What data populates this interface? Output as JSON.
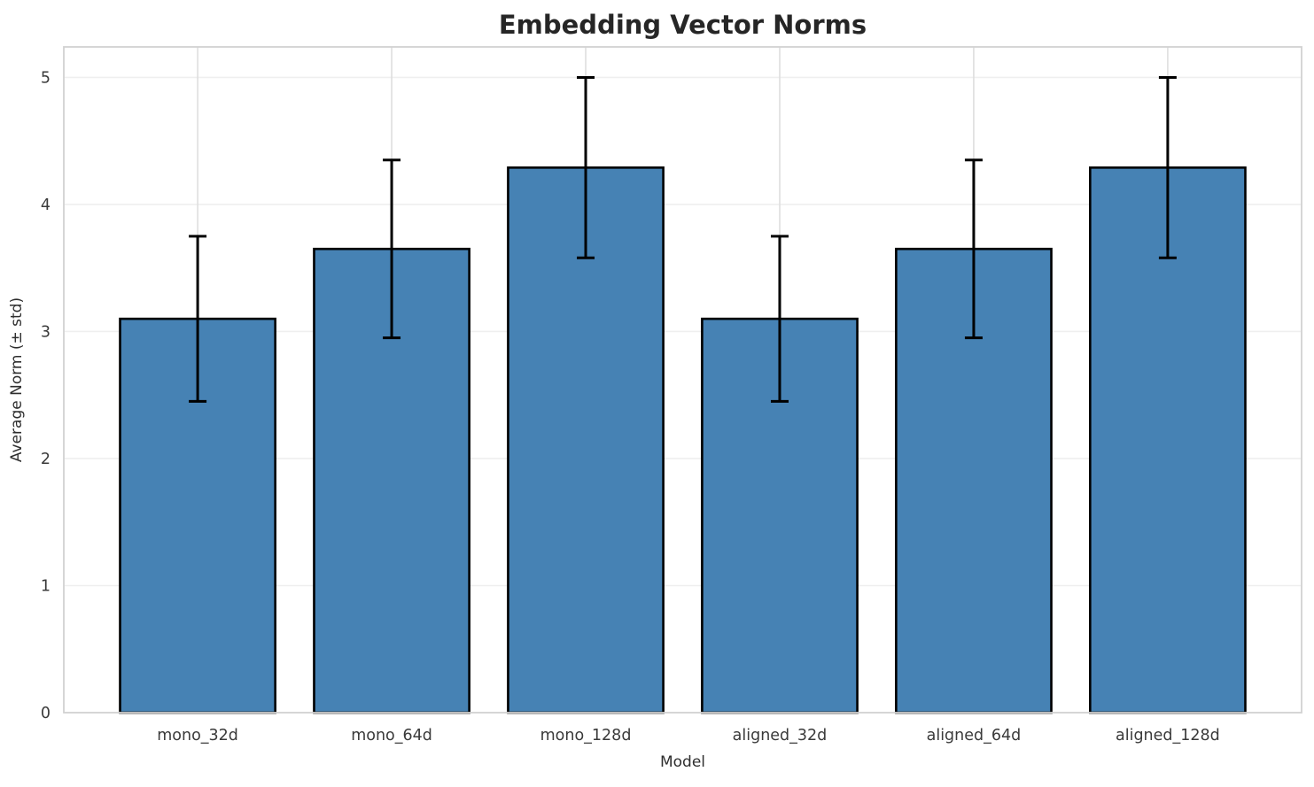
{
  "chart_data": {
    "type": "bar",
    "title": "Embedding Vector Norms",
    "xlabel": "Model",
    "ylabel": "Average Norm (± std)",
    "categories": [
      "mono_32d",
      "mono_64d",
      "mono_128d",
      "aligned_32d",
      "aligned_64d",
      "aligned_128d"
    ],
    "values": [
      3.1,
      3.65,
      4.29,
      3.1,
      3.65,
      4.29
    ],
    "errors": [
      0.65,
      0.7,
      0.71,
      0.65,
      0.7,
      0.71
    ],
    "series": [
      {
        "name": "Average Norm",
        "values": [
          3.1,
          3.65,
          4.29,
          3.1,
          3.65,
          4.29
        ],
        "errors": [
          0.65,
          0.7,
          0.71,
          0.65,
          0.7,
          0.71
        ]
      }
    ],
    "yticks": [
      "0",
      "1",
      "2",
      "3",
      "4",
      "5"
    ],
    "ylim": [
      0,
      5.24
    ],
    "bar_width_fraction": 0.8,
    "grid": true,
    "legend": "none",
    "colors": {
      "bar_fill": "#4682b4",
      "bar_edge": "#000000",
      "error_bar": "#000000",
      "grid_horizontal": "#efefef",
      "grid_vertical": "#dedede",
      "spine": "#d2d2d2",
      "title_text": "#262626",
      "label_text": "#2e2e2e",
      "tick_text": "#3a3a3a",
      "background": "#ffffff"
    }
  }
}
